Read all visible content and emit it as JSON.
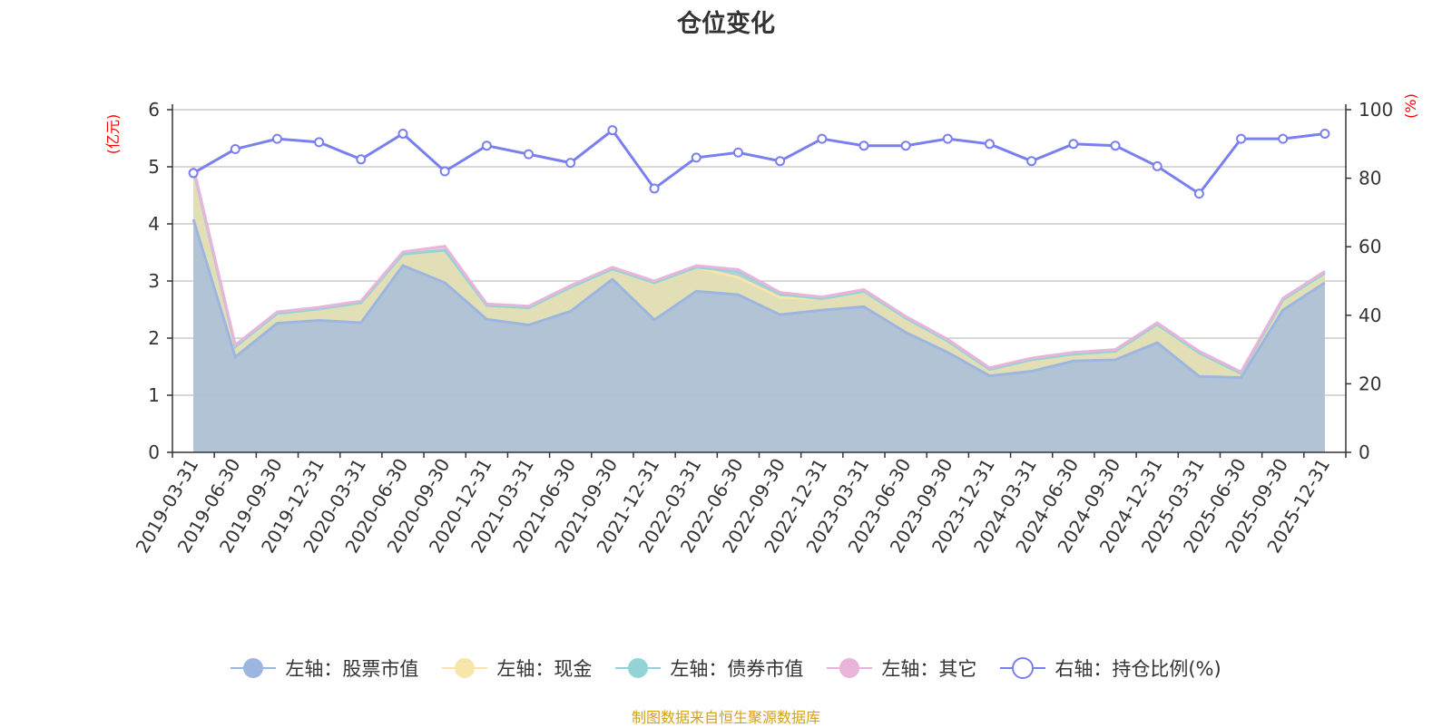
{
  "chart_data": {
    "type": "area",
    "title": "仓位变化",
    "left_axis_unit": "(亿元)",
    "right_axis_unit": "(%)",
    "categories": [
      "2019-03-31",
      "2019-06-30",
      "2019-09-30",
      "2019-12-31",
      "2020-03-31",
      "2020-06-30",
      "2020-09-30",
      "2020-12-31",
      "2021-03-31",
      "2021-06-30",
      "2021-09-30",
      "2021-12-31",
      "2022-03-31",
      "2022-06-30",
      "2022-09-30",
      "2022-12-31",
      "2023-03-31",
      "2023-06-30",
      "2023-09-30",
      "2023-12-31",
      "2024-03-31",
      "2024-06-30",
      "2024-09-30",
      "2024-12-31",
      "2025-03-31",
      "2025-06-30",
      "2025-09-30",
      "2025-12-31"
    ],
    "left_ylim": [
      0,
      6
    ],
    "left_ticks": [
      0,
      1,
      2,
      3,
      4,
      5,
      6
    ],
    "right_ylim": [
      0,
      100
    ],
    "right_ticks": [
      0,
      20,
      40,
      60,
      80,
      100
    ],
    "grid": true,
    "legend_position": "bottom",
    "stacked": true,
    "series": [
      {
        "name": "左轴：股票市值",
        "axis": "left",
        "kind": "area",
        "color": "#9db6e0",
        "values": [
          4.08,
          1.67,
          2.26,
          2.31,
          2.27,
          3.27,
          2.97,
          2.33,
          2.23,
          2.47,
          3.03,
          2.32,
          2.82,
          2.76,
          2.41,
          2.49,
          2.55,
          2.1,
          1.75,
          1.34,
          1.42,
          1.6,
          1.62,
          1.92,
          1.33,
          1.31,
          2.49,
          2.97
        ]
      },
      {
        "name": "左轴：现金",
        "axis": "left",
        "kind": "area",
        "color": "#f8e5a8",
        "values": [
          0.88,
          0.18,
          0.17,
          0.2,
          0.35,
          0.2,
          0.57,
          0.24,
          0.3,
          0.42,
          0.18,
          0.65,
          0.42,
          0.3,
          0.3,
          0.2,
          0.27,
          0.25,
          0.2,
          0.11,
          0.2,
          0.12,
          0.15,
          0.32,
          0.41,
          0.07,
          0.18,
          0.17
        ]
      },
      {
        "name": "左轴：债券市值",
        "axis": "left",
        "kind": "area",
        "color": "#92d4d6",
        "values": [
          0,
          0,
          0,
          0,
          0,
          0,
          0,
          0,
          0,
          0,
          0,
          0,
          0,
          0.11,
          0.06,
          0,
          0,
          0,
          0,
          0,
          0,
          0,
          0,
          0,
          0,
          0,
          0,
          0
        ]
      },
      {
        "name": "左轴：其它",
        "axis": "left",
        "kind": "area",
        "color": "#e9b4d9",
        "values": [
          0.04,
          0.03,
          0.03,
          0.03,
          0.03,
          0.04,
          0.07,
          0.03,
          0.03,
          0.03,
          0.03,
          0.03,
          0.03,
          0.03,
          0.03,
          0.03,
          0.03,
          0.03,
          0.03,
          0.03,
          0.03,
          0.03,
          0.03,
          0.03,
          0.03,
          0.03,
          0.03,
          0.03
        ]
      },
      {
        "name": "右轴：持仓比例(%)",
        "axis": "right",
        "kind": "line",
        "color": "#7a7ff0",
        "values": [
          81.5,
          88.5,
          91.5,
          90.5,
          85.5,
          93.0,
          82.0,
          89.5,
          87.0,
          84.5,
          94.0,
          77.0,
          86.0,
          87.5,
          85.0,
          91.5,
          89.5,
          89.5,
          91.5,
          90.0,
          85.0,
          90.0,
          89.5,
          83.5,
          75.5,
          91.5,
          91.5,
          93.0
        ]
      }
    ]
  },
  "source_text": "制图数据来自恒生聚源数据库",
  "source_color": "#d4a017",
  "axis_unit_color": "#ff0000"
}
